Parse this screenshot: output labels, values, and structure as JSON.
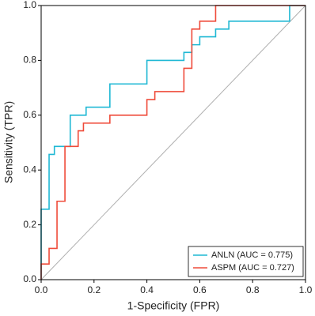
{
  "chart_data": {
    "type": "line",
    "xlabel": "1-Specificity (FPR)",
    "ylabel": "Sensitivity (TPR)",
    "xlim": [
      0,
      1
    ],
    "ylim": [
      0,
      1
    ],
    "xticks": [
      {
        "value": 0,
        "label": "0.0"
      },
      0.2,
      0.4,
      0.6,
      0.8,
      {
        "value": 1,
        "label": "1.0"
      }
    ],
    "yticks": [
      {
        "value": 0,
        "label": "0.0"
      },
      0.2,
      0.4,
      0.6,
      0.8,
      {
        "value": 1,
        "label": "1.0"
      }
    ],
    "legend": "lower right",
    "diagonal_color": "#b0b0b0",
    "series": [
      {
        "name": "ANLN (AUC = 0.775)",
        "color": "#1fb8d4",
        "x": [
          0,
          0,
          0.03,
          0.03,
          0.05,
          0.05,
          0.11,
          0.11,
          0.17,
          0.17,
          0.26,
          0.26,
          0.4,
          0.4,
          0.54,
          0.54,
          0.57,
          0.57,
          0.6,
          0.6,
          0.66,
          0.66,
          0.71,
          0.71,
          0.94,
          0.94,
          1
        ],
        "values": [
          0,
          0.257,
          0.257,
          0.457,
          0.457,
          0.486,
          0.486,
          0.6,
          0.6,
          0.629,
          0.629,
          0.714,
          0.714,
          0.8,
          0.8,
          0.829,
          0.829,
          0.857,
          0.857,
          0.886,
          0.886,
          0.914,
          0.914,
          0.943,
          0.943,
          1,
          1
        ]
      },
      {
        "name": "ASPM (AUC = 0.727)",
        "color": "#ef4b3a",
        "x": [
          0,
          0,
          0.03,
          0.03,
          0.06,
          0.06,
          0.09,
          0.09,
          0.14,
          0.14,
          0.16,
          0.16,
          0.26,
          0.26,
          0.4,
          0.4,
          0.43,
          0.43,
          0.54,
          0.54,
          0.57,
          0.57,
          0.6,
          0.6,
          0.66,
          0.66,
          1
        ],
        "values": [
          0,
          0.057,
          0.057,
          0.114,
          0.114,
          0.286,
          0.286,
          0.486,
          0.486,
          0.543,
          0.543,
          0.571,
          0.571,
          0.6,
          0.6,
          0.657,
          0.657,
          0.686,
          0.686,
          0.771,
          0.771,
          0.914,
          0.914,
          0.943,
          0.943,
          1,
          1
        ]
      }
    ]
  }
}
